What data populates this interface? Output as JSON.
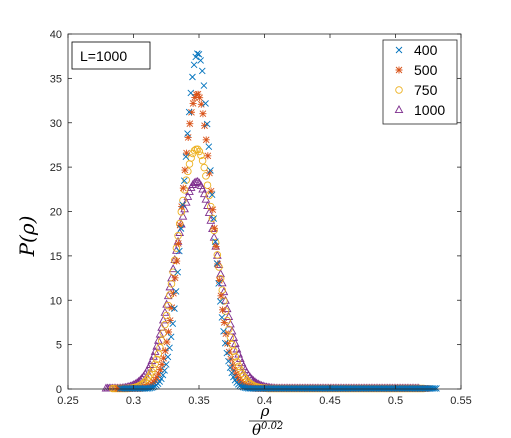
{
  "chart_data": {
    "type": "scatter",
    "title": "",
    "annotation": "L=1000",
    "ylabel": "P(ρ)",
    "xlabel": {
      "numerator": "ρ",
      "denominator_base": "θ",
      "denominator_exponent": "0.02"
    },
    "xlim": [
      0.25,
      0.55
    ],
    "ylim": [
      0,
      40
    ],
    "xticks": [
      "0.25",
      "0.3",
      "0.35",
      "0.4",
      "0.45",
      "0.5",
      "0.55"
    ],
    "yticks": [
      "0",
      "5",
      "10",
      "15",
      "20",
      "25",
      "30",
      "35",
      "40"
    ],
    "grid": false,
    "legend_position": "top-right",
    "series": [
      {
        "name": "400",
        "marker": "x",
        "color": "#0072BD",
        "peak": 37.8,
        "mean": 0.349,
        "sigma": 0.0105,
        "x_range": [
          0.29,
          0.532
        ]
      },
      {
        "name": "500",
        "marker": "asterisk",
        "color": "#D95319",
        "peak": 33.2,
        "mean": 0.3485,
        "sigma": 0.012,
        "x_range": [
          0.288,
          0.526
        ]
      },
      {
        "name": "750",
        "marker": "circle",
        "color": "#EDB120",
        "peak": 27.0,
        "mean": 0.348,
        "sigma": 0.0148,
        "x_range": [
          0.284,
          0.522
        ]
      },
      {
        "name": "1000",
        "marker": "triangle",
        "color": "#7E2F8E",
        "peak": 23.3,
        "mean": 0.348,
        "sigma": 0.017,
        "x_range": [
          0.279,
          0.518
        ]
      }
    ]
  }
}
